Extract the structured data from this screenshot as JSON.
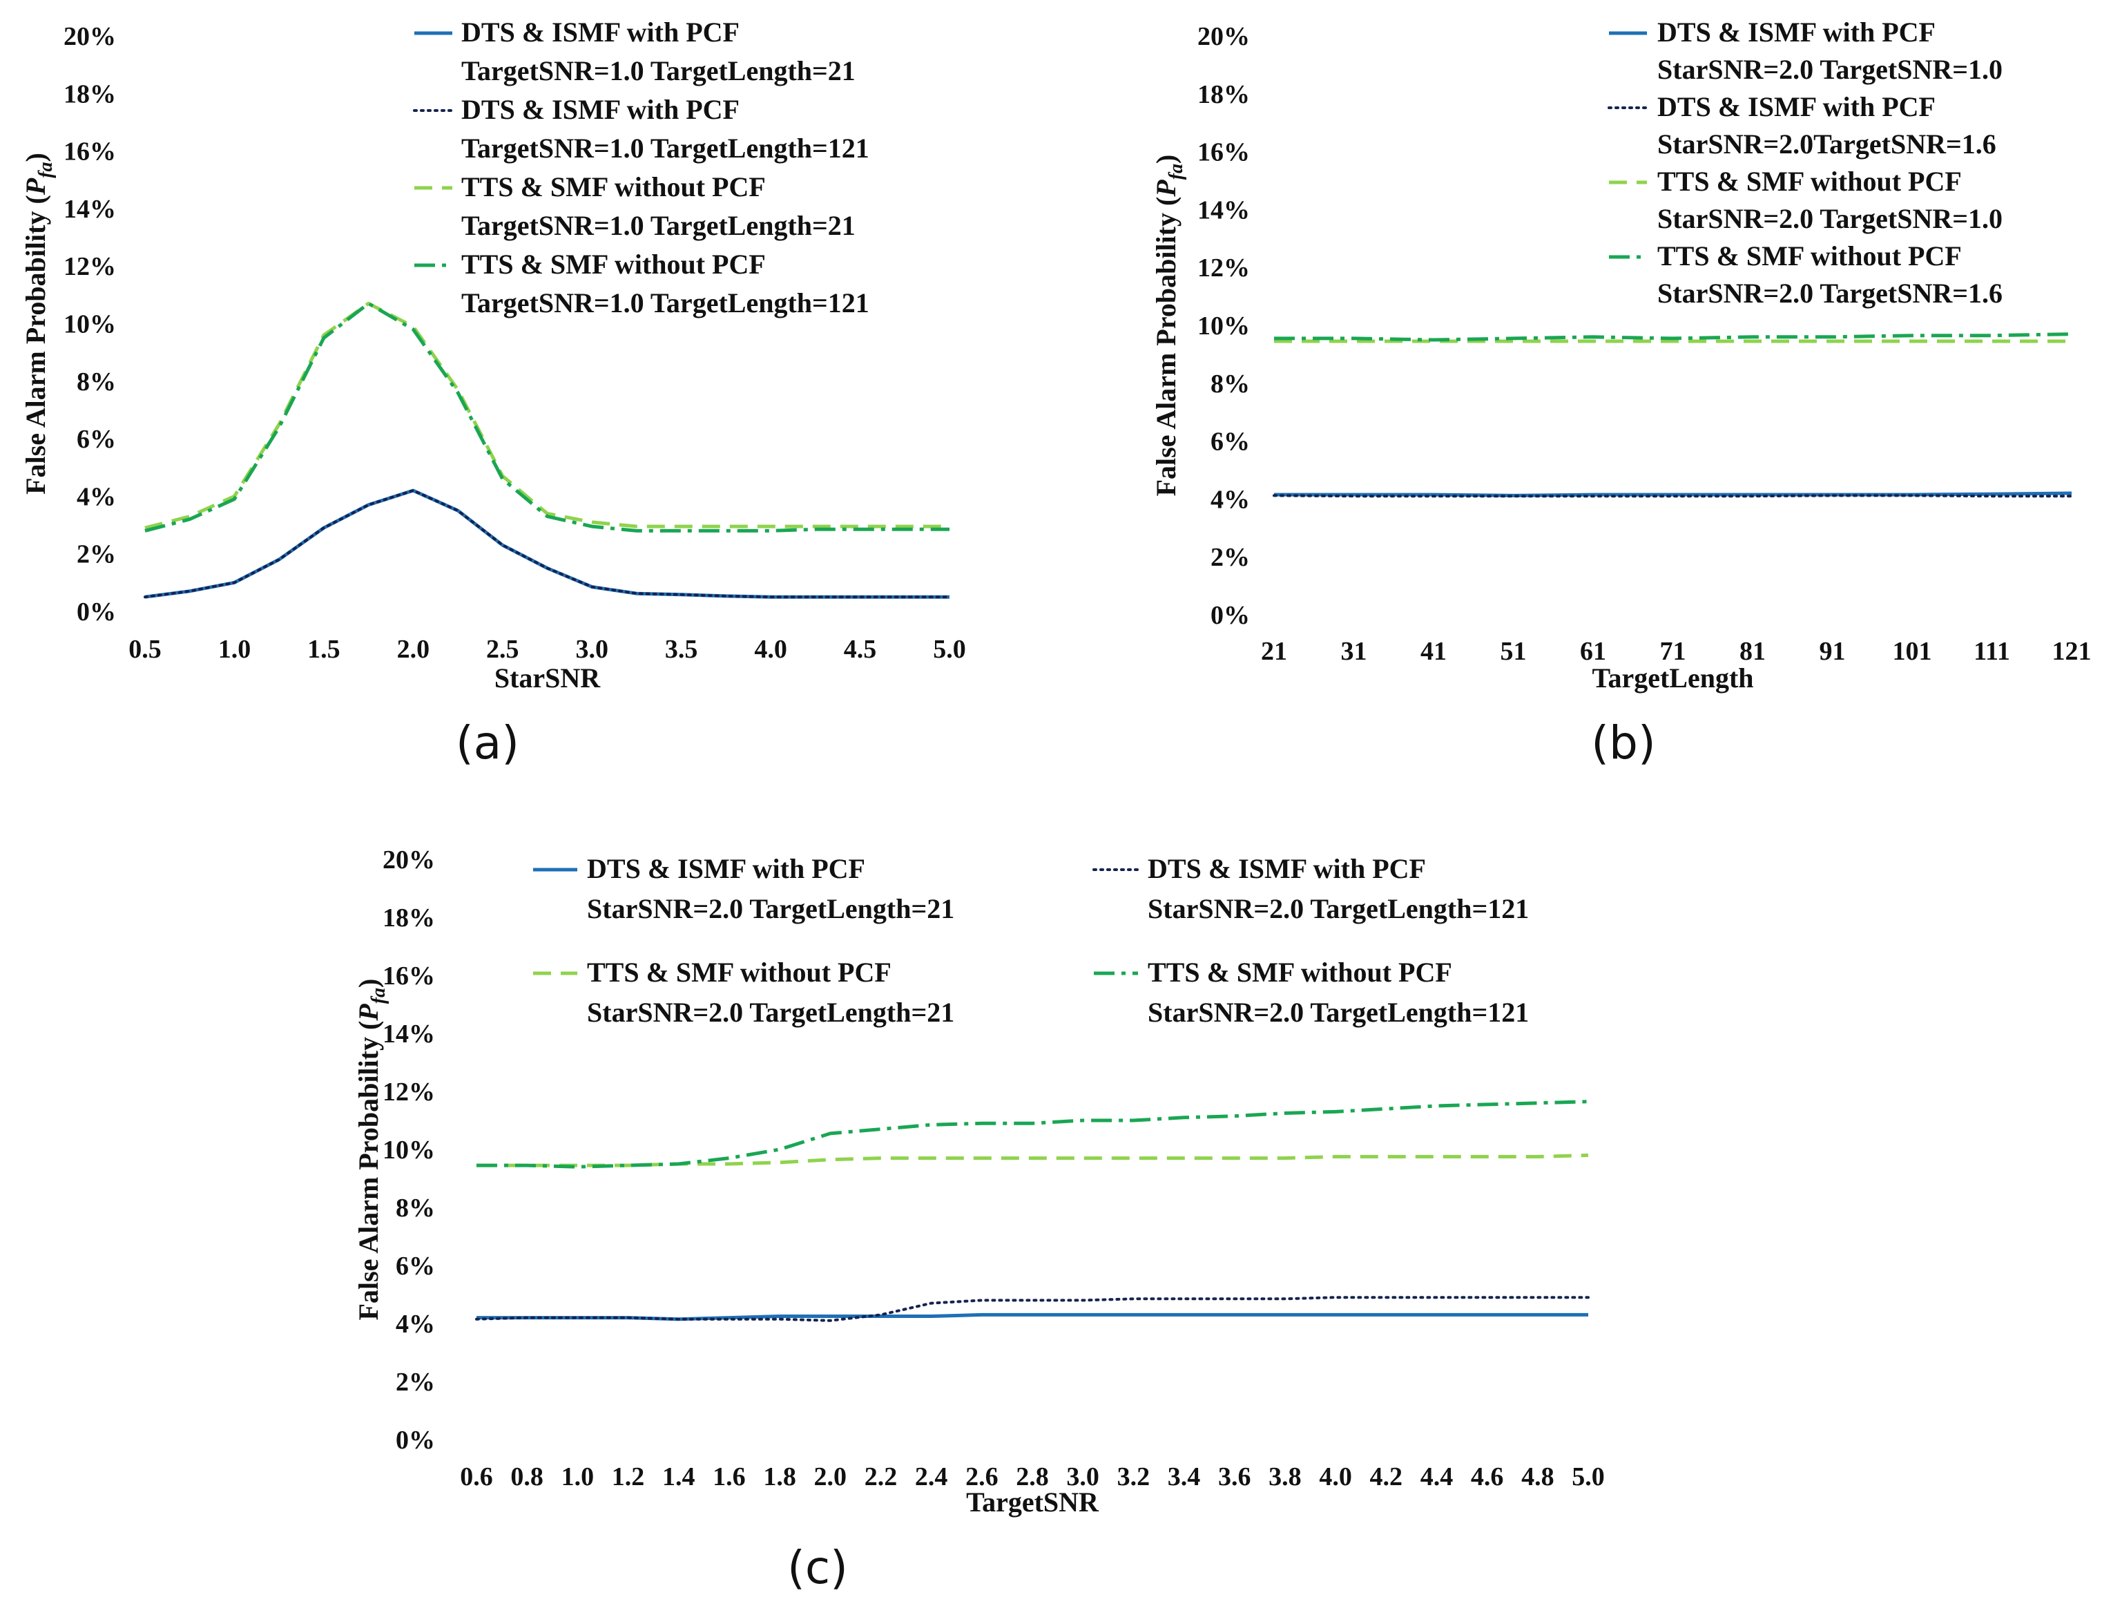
{
  "chart_data": [
    {
      "id": "a",
      "type": "line",
      "panel_label": "(a)",
      "xlabel": "StarSNR",
      "ylabel_main": "False Alarm Probability (",
      "ylabel_symbol": "P",
      "ylabel_sub": "fa",
      "ylabel_close": ")",
      "ylim": [
        0,
        20
      ],
      "yticks": [
        "0%",
        "2%",
        "4%",
        "6%",
        "8%",
        "10%",
        "12%",
        "14%",
        "16%",
        "18%",
        "20%"
      ],
      "x": [
        0.5,
        0.75,
        1.0,
        1.25,
        1.5,
        1.75,
        2.0,
        2.25,
        2.5,
        2.75,
        3.0,
        3.25,
        3.5,
        3.75,
        4.0,
        4.25,
        4.5,
        4.75,
        5.0
      ],
      "xlim": [
        0.5,
        5.0
      ],
      "xticks": [
        "0.5",
        "1.0",
        "1.5",
        "2.0",
        "2.5",
        "3.0",
        "3.5",
        "4.0",
        "4.5",
        "5.0"
      ],
      "series": [
        {
          "name": "DTS & ISMF with PCF",
          "name2": "TargetSNR=1.0 TargetLength=21",
          "style": "solid-blue",
          "values": [
            0.5,
            0.7,
            1.0,
            1.8,
            2.9,
            3.7,
            4.2,
            3.5,
            2.3,
            1.5,
            0.85,
            0.62,
            0.58,
            0.53,
            0.5,
            0.5,
            0.5,
            0.5,
            0.5
          ]
        },
        {
          "name": "DTS & ISMF with PCF",
          "name2": "TargetSNR=1.0 TargetLength=121",
          "style": "dotted-navy",
          "values": [
            0.5,
            0.7,
            1.0,
            1.8,
            2.9,
            3.7,
            4.2,
            3.5,
            2.3,
            1.5,
            0.85,
            0.62,
            0.58,
            0.53,
            0.5,
            0.5,
            0.5,
            0.5,
            0.5
          ]
        },
        {
          "name": "TTS & SMF without PCF",
          "name2": "TargetSNR=1.0 TargetLength=21",
          "style": "dashed-lightgreen",
          "values": [
            2.9,
            3.3,
            4.0,
            6.5,
            9.6,
            10.7,
            9.9,
            7.7,
            4.7,
            3.4,
            3.1,
            2.95,
            2.95,
            2.95,
            2.95,
            2.95,
            2.95,
            2.95,
            2.95
          ]
        },
        {
          "name": "TTS & SMF without PCF",
          "name2": "TargetSNR=1.0 TargetLength=121",
          "style": "dashdot-green",
          "values": [
            2.8,
            3.2,
            3.9,
            6.4,
            9.5,
            10.7,
            9.8,
            7.6,
            4.6,
            3.3,
            2.95,
            2.8,
            2.8,
            2.8,
            2.8,
            2.85,
            2.85,
            2.85,
            2.85
          ]
        }
      ]
    },
    {
      "id": "b",
      "type": "line",
      "panel_label": "(b)",
      "xlabel": "TargetLength",
      "ylabel_main": "False Alarm Probability (",
      "ylabel_symbol": "P",
      "ylabel_sub": "fa",
      "ylabel_close": ")",
      "ylim": [
        0,
        20
      ],
      "yticks": [
        "0%",
        "2%",
        "4%",
        "6%",
        "8%",
        "10%",
        "12%",
        "14%",
        "16%",
        "18%",
        "20%"
      ],
      "x": [
        21,
        31,
        41,
        51,
        61,
        71,
        81,
        91,
        101,
        111,
        121
      ],
      "xlim": [
        21,
        121
      ],
      "xticks": [
        "21",
        "31",
        "41",
        "51",
        "61",
        "71",
        "81",
        "91",
        "101",
        "111",
        "121"
      ],
      "series": [
        {
          "name": "DTS & ISMF with PCF",
          "name2": "StarSNR=2.0 TargetSNR=1.0",
          "style": "solid-blue",
          "values": [
            4.15,
            4.15,
            4.15,
            4.12,
            4.15,
            4.15,
            4.15,
            4.15,
            4.15,
            4.17,
            4.2
          ]
        },
        {
          "name": "DTS & ISMF with PCF",
          "name2": "StarSNR=2.0TargetSNR=1.6",
          "style": "dotted-navy",
          "values": [
            4.12,
            4.1,
            4.1,
            4.1,
            4.1,
            4.1,
            4.1,
            4.12,
            4.12,
            4.1,
            4.1
          ]
        },
        {
          "name": "TTS & SMF without PCF",
          "name2": "StarSNR=2.0 TargetSNR=1.0",
          "style": "dashed-lightgreen",
          "values": [
            9.45,
            9.45,
            9.45,
            9.45,
            9.45,
            9.45,
            9.45,
            9.45,
            9.45,
            9.45,
            9.45
          ]
        },
        {
          "name": "TTS & SMF without PCF",
          "name2": "StarSNR=2.0 TargetSNR=1.6",
          "style": "dashdot-green",
          "values": [
            9.55,
            9.55,
            9.5,
            9.55,
            9.6,
            9.55,
            9.6,
            9.6,
            9.65,
            9.65,
            9.7
          ]
        }
      ]
    },
    {
      "id": "c",
      "type": "line",
      "panel_label": "(c)",
      "xlabel": "TargetSNR",
      "ylabel_main": "False Alarm Probability (",
      "ylabel_symbol": "P",
      "ylabel_sub": "fa",
      "ylabel_close": ")",
      "ylim": [
        0,
        20
      ],
      "yticks": [
        "0%",
        "2%",
        "4%",
        "6%",
        "8%",
        "10%",
        "12%",
        "14%",
        "16%",
        "18%",
        "20%"
      ],
      "x": [
        0.6,
        0.8,
        1.0,
        1.2,
        1.4,
        1.6,
        1.8,
        2.0,
        2.2,
        2.4,
        2.6,
        2.8,
        3.0,
        3.2,
        3.4,
        3.6,
        3.8,
        4.0,
        4.2,
        4.4,
        4.6,
        4.8,
        5.0
      ],
      "xlim": [
        0.6,
        5.0
      ],
      "xticks": [
        "0.6",
        "0.8",
        "1.0",
        "1.2",
        "1.4",
        "1.6",
        "1.8",
        "2.0",
        "2.2",
        "2.4",
        "2.6",
        "2.8",
        "3.0",
        "3.2",
        "3.4",
        "3.6",
        "3.8",
        "4.0",
        "4.2",
        "4.4",
        "4.6",
        "4.8",
        "5.0"
      ],
      "series": [
        {
          "name": "DTS & ISMF with PCF",
          "name2": "StarSNR=2.0 TargetLength=21",
          "style": "solid-blue",
          "values": [
            4.2,
            4.2,
            4.2,
            4.2,
            4.15,
            4.2,
            4.25,
            4.25,
            4.25,
            4.25,
            4.3,
            4.3,
            4.3,
            4.3,
            4.3,
            4.3,
            4.3,
            4.3,
            4.3,
            4.3,
            4.3,
            4.3,
            4.3
          ]
        },
        {
          "name": "DTS & ISMF with PCF",
          "name2": "StarSNR=2.0 TargetLength=121",
          "style": "dotted-navy",
          "values": [
            4.15,
            4.2,
            4.2,
            4.2,
            4.15,
            4.15,
            4.15,
            4.1,
            4.3,
            4.7,
            4.8,
            4.8,
            4.8,
            4.85,
            4.85,
            4.85,
            4.85,
            4.9,
            4.9,
            4.9,
            4.9,
            4.9,
            4.9
          ]
        },
        {
          "name": "TTS & SMF without PCF",
          "name2": "StarSNR=2.0 TargetLength=21",
          "style": "dashed-lightgreen",
          "values": [
            9.45,
            9.45,
            9.45,
            9.45,
            9.5,
            9.5,
            9.55,
            9.65,
            9.7,
            9.7,
            9.7,
            9.7,
            9.7,
            9.7,
            9.7,
            9.7,
            9.7,
            9.75,
            9.75,
            9.75,
            9.75,
            9.75,
            9.8
          ]
        },
        {
          "name": "TTS & SMF without PCF",
          "name2": "StarSNR=2.0 TargetLength=121",
          "style": "dashdot-green",
          "values": [
            9.45,
            9.45,
            9.4,
            9.45,
            9.5,
            9.7,
            10.0,
            10.55,
            10.7,
            10.85,
            10.9,
            10.9,
            11.0,
            11.0,
            11.1,
            11.15,
            11.25,
            11.3,
            11.4,
            11.5,
            11.55,
            11.6,
            11.65
          ]
        }
      ]
    }
  ]
}
